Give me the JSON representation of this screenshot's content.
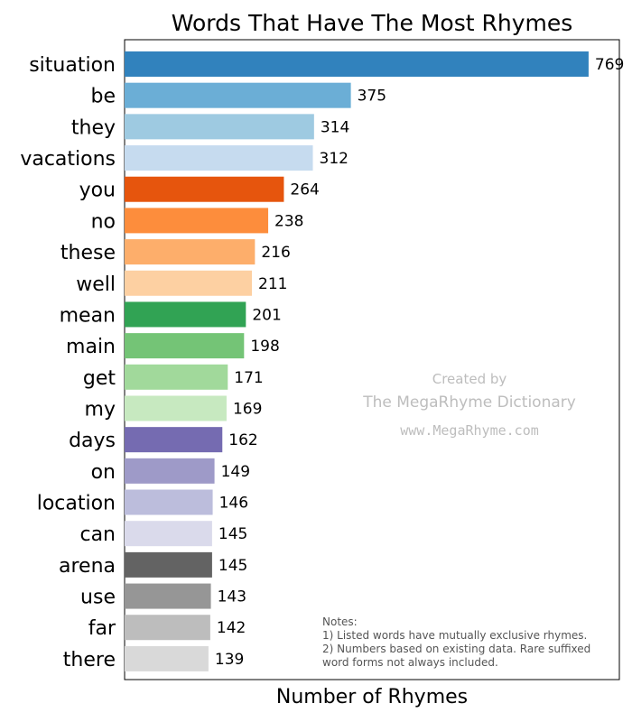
{
  "chart_data": {
    "type": "bar",
    "orientation": "horizontal",
    "title": "Words That Have The Most Rhymes",
    "xlabel": "Number of Rhymes",
    "ylabel": "",
    "categories": [
      "situation",
      "be",
      "they",
      "vacations",
      "you",
      "no",
      "these",
      "well",
      "mean",
      "main",
      "get",
      "my",
      "days",
      "on",
      "location",
      "can",
      "arena",
      "use",
      "far",
      "there"
    ],
    "values": [
      769,
      375,
      314,
      312,
      264,
      238,
      216,
      211,
      201,
      198,
      171,
      169,
      162,
      149,
      146,
      145,
      145,
      143,
      142,
      139
    ],
    "colors": [
      "#3182bd",
      "#6baed6",
      "#9ecae1",
      "#c6dbef",
      "#e6550d",
      "#fd8d3c",
      "#fdae6b",
      "#fdd0a2",
      "#31a354",
      "#74c476",
      "#a1d99b",
      "#c7e9c0",
      "#756bb1",
      "#9e9ac8",
      "#bcbddc",
      "#dadaeb",
      "#636363",
      "#969696",
      "#bdbdbd",
      "#d9d9d9"
    ],
    "xlim": [
      0,
      820
    ],
    "grid": false,
    "x_ticks_shown": false,
    "data_labels": true
  },
  "watermark": {
    "line1": "Created by",
    "line2": "The MegaRhyme Dictionary",
    "line3": "www.MegaRhyme.com"
  },
  "notes": {
    "heading": "Notes:",
    "line1": "1) Listed words have mutually exclusive rhymes.",
    "line2": "2) Numbers based on existing data. Rare suffixed",
    "line3": "word forms not always included."
  }
}
